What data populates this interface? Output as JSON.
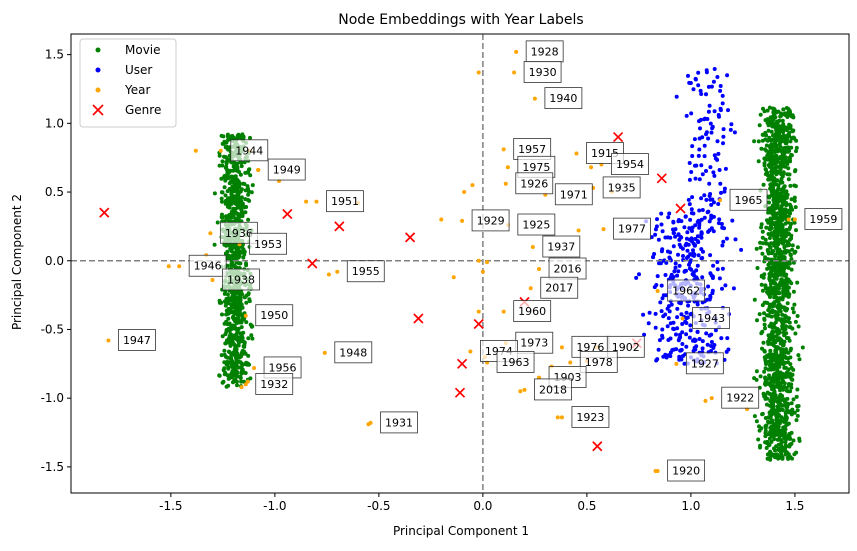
{
  "chart_data": {
    "type": "scatter",
    "title": "Node Embeddings with Year Labels",
    "xlabel": "Principal Component 1",
    "ylabel": "Principal Component 2",
    "xlim": [
      -1.98,
      1.76
    ],
    "ylim": [
      -1.69,
      1.65
    ],
    "xticks": [
      "-1.5",
      "-1.0",
      "-0.5",
      "0.0",
      "0.5",
      "1.0",
      "1.5"
    ],
    "xtick_values": [
      -1.5,
      -1.0,
      -0.5,
      0.0,
      0.5,
      1.0,
      1.5
    ],
    "yticks": [
      "-1.5",
      "-1.0",
      "-0.5",
      "0.0",
      "0.5",
      "1.0",
      "1.5"
    ],
    "ytick_values": [
      -1.5,
      -1.0,
      -0.5,
      0.0,
      0.5,
      1.0,
      1.5
    ],
    "grid": false,
    "legend_placement": "top-left",
    "reference_lines": {
      "x": 0,
      "y": 0,
      "style": "dashed",
      "color": "#808080"
    },
    "series": [
      {
        "name": "Movie",
        "marker": "dot",
        "color": "#008000",
        "clusters": [
          {
            "x_center": -1.19,
            "x_spread": 0.06,
            "y_range": [
              -0.92,
              0.92
            ],
            "count": 900
          },
          {
            "x_center": 1.42,
            "x_spread": 0.07,
            "y_range": [
              -1.45,
              1.12
            ],
            "count": 1500
          }
        ]
      },
      {
        "name": "User",
        "marker": "dot",
        "color": "#0000ff",
        "clusters": [
          {
            "x_center": 1.08,
            "x_spread": 0.1,
            "y_range": [
              0.2,
              1.4
            ],
            "count": 120
          },
          {
            "x_center": 0.98,
            "x_spread": 0.16,
            "y_range": [
              -0.75,
              0.35
            ],
            "count": 350
          }
        ]
      },
      {
        "name": "Year",
        "marker": "dot",
        "color": "#ffa500",
        "labels": [
          {
            "label": "1928",
            "x": 0.16,
            "y": 1.52
          },
          {
            "label": "1930",
            "x": 0.15,
            "y": 1.37
          },
          {
            "label": "1940",
            "x": 0.25,
            "y": 1.18
          },
          {
            "label": "1944",
            "x": -1.26,
            "y": 0.8
          },
          {
            "label": "1949",
            "x": -1.08,
            "y": 0.66
          },
          {
            "label": "1957",
            "x": 0.1,
            "y": 0.81
          },
          {
            "label": "1915",
            "x": 0.45,
            "y": 0.78
          },
          {
            "label": "1954",
            "x": 0.57,
            "y": 0.7
          },
          {
            "label": "1975",
            "x": 0.12,
            "y": 0.68
          },
          {
            "label": "1926",
            "x": 0.11,
            "y": 0.56
          },
          {
            "label": "1935",
            "x": 0.53,
            "y": 0.53
          },
          {
            "label": "1971",
            "x": 0.3,
            "y": 0.48
          },
          {
            "label": "1951",
            "x": -0.8,
            "y": 0.43
          },
          {
            "label": "1965",
            "x": 1.14,
            "y": 0.44
          },
          {
            "label": "1929",
            "x": -0.1,
            "y": 0.29
          },
          {
            "label": "1925",
            "x": 0.12,
            "y": 0.26
          },
          {
            "label": "1977",
            "x": 0.58,
            "y": 0.23
          },
          {
            "label": "1959",
            "x": 1.5,
            "y": 0.3
          },
          {
            "label": "1936",
            "x": -1.31,
            "y": 0.2
          },
          {
            "label": "1953",
            "x": -1.17,
            "y": 0.12
          },
          {
            "label": "1937",
            "x": 0.24,
            "y": 0.1
          },
          {
            "label": "1946",
            "x": -1.46,
            "y": -0.04
          },
          {
            "label": "1955",
            "x": -0.7,
            "y": -0.08
          },
          {
            "label": "2016",
            "x": 0.27,
            "y": -0.06
          },
          {
            "label": "1938",
            "x": -1.3,
            "y": -0.14
          },
          {
            "label": "2017",
            "x": 0.23,
            "y": -0.2
          },
          {
            "label": "1962",
            "x": 0.84,
            "y": -0.22
          },
          {
            "label": "1960",
            "x": 0.1,
            "y": -0.37
          },
          {
            "label": "1950",
            "x": -1.14,
            "y": -0.4
          },
          {
            "label": "1943",
            "x": 0.96,
            "y": -0.42
          },
          {
            "label": "1947",
            "x": -1.8,
            "y": -0.58
          },
          {
            "label": "1973",
            "x": 0.11,
            "y": -0.6
          },
          {
            "label": "1976",
            "x": 0.38,
            "y": -0.63
          },
          {
            "label": "1902",
            "x": 0.55,
            "y": -0.63
          },
          {
            "label": "1974",
            "x": -0.06,
            "y": -0.66
          },
          {
            "label": "1948",
            "x": -0.76,
            "y": -0.67
          },
          {
            "label": "1978",
            "x": 0.42,
            "y": -0.74
          },
          {
            "label": "1963",
            "x": 0.02,
            "y": -0.74
          },
          {
            "label": "1927",
            "x": 0.93,
            "y": -0.75
          },
          {
            "label": "1956",
            "x": -1.1,
            "y": -0.78
          },
          {
            "label": "1903",
            "x": 0.27,
            "y": -0.85
          },
          {
            "label": "1932",
            "x": -1.14,
            "y": -0.9
          },
          {
            "label": "2018",
            "x": 0.2,
            "y": -0.94
          },
          {
            "label": "1922",
            "x": 1.1,
            "y": -1.0
          },
          {
            "label": "1931",
            "x": -0.54,
            "y": -1.18
          },
          {
            "label": "1923",
            "x": 0.38,
            "y": -1.14
          },
          {
            "label": "1920",
            "x": 0.84,
            "y": -1.53
          }
        ],
        "extra_points": [
          {
            "x": -0.02,
            "y": 1.37
          },
          {
            "x": -0.6,
            "y": 0.42
          },
          {
            "x": -0.2,
            "y": 0.3
          },
          {
            "x": -0.98,
            "y": 0.58
          },
          {
            "x": -1.12,
            "y": 0.8
          },
          {
            "x": -1.38,
            "y": 0.8
          },
          {
            "x": -1.33,
            "y": 0.04
          },
          {
            "x": -1.51,
            "y": -0.04
          },
          {
            "x": -0.14,
            "y": -0.12
          },
          {
            "x": -0.74,
            "y": -0.1
          },
          {
            "x": -0.02,
            "y": 0.0
          },
          {
            "x": 0.02,
            "y": -0.01
          },
          {
            "x": 0.0,
            "y": -0.08
          },
          {
            "x": -0.05,
            "y": 0.55
          },
          {
            "x": -0.09,
            "y": 0.5
          },
          {
            "x": 0.52,
            "y": 0.68
          },
          {
            "x": 0.62,
            "y": 0.5
          },
          {
            "x": -1.13,
            "y": -0.88
          },
          {
            "x": -1.16,
            "y": -0.92
          },
          {
            "x": -0.02,
            "y": -0.37
          },
          {
            "x": 0.01,
            "y": -0.7
          },
          {
            "x": 0.33,
            "y": -0.77
          },
          {
            "x": 0.36,
            "y": -1.14
          },
          {
            "x": 0.18,
            "y": -0.95
          },
          {
            "x": 1.07,
            "y": -1.02
          },
          {
            "x": 1.27,
            "y": -1.08
          },
          {
            "x": 0.83,
            "y": -1.53
          },
          {
            "x": 0.5,
            "y": -0.73
          },
          {
            "x": 0.46,
            "y": 0.22
          },
          {
            "x": -0.85,
            "y": 0.43
          },
          {
            "x": -1.08,
            "y": 0.66
          },
          {
            "x": -0.55,
            "y": -1.19
          },
          {
            "x": 1.47,
            "y": 0.3
          }
        ]
      },
      {
        "name": "Genre",
        "marker": "x",
        "color": "#ff0000",
        "points": [
          {
            "x": -1.82,
            "y": 0.35
          },
          {
            "x": -0.94,
            "y": 0.34
          },
          {
            "x": -0.69,
            "y": 0.25
          },
          {
            "x": -0.82,
            "y": -0.02
          },
          {
            "x": -0.35,
            "y": 0.17
          },
          {
            "x": -0.31,
            "y": -0.42
          },
          {
            "x": -0.02,
            "y": -0.46
          },
          {
            "x": -0.1,
            "y": -0.75
          },
          {
            "x": -0.11,
            "y": -0.96
          },
          {
            "x": 0.2,
            "y": -0.3
          },
          {
            "x": 0.55,
            "y": -1.35
          },
          {
            "x": 0.65,
            "y": 0.9
          },
          {
            "x": 0.86,
            "y": 0.6
          },
          {
            "x": 0.95,
            "y": 0.38
          },
          {
            "x": 0.74,
            "y": -0.6
          }
        ]
      }
    ]
  }
}
